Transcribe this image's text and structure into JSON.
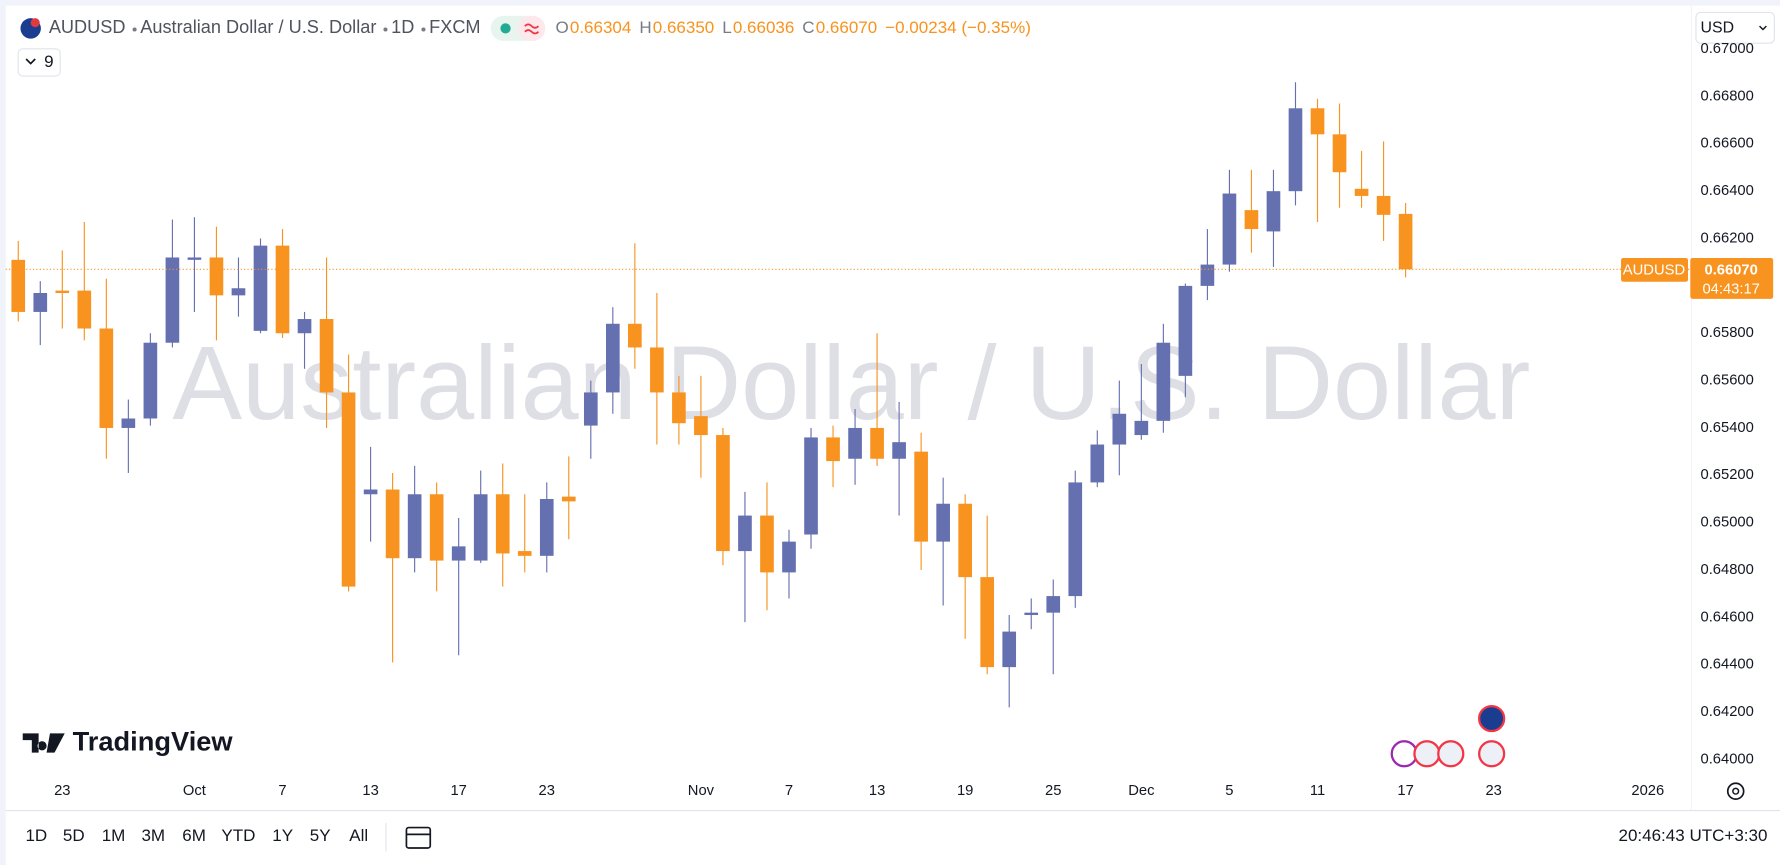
{
  "header": {
    "symbol": "AUDUSD",
    "description": "Australian Dollar / U.S. Dollar",
    "interval": "1D",
    "exchange": "FXCM",
    "ohlc": [
      {
        "label": "O",
        "value": "0.66304"
      },
      {
        "label": "H",
        "value": "0.66350"
      },
      {
        "label": "L",
        "value": "0.66036"
      },
      {
        "label": "C",
        "value": "0.66070"
      }
    ],
    "change": "−0.00234 (−0.35%)",
    "indicators_count": "9",
    "currency": "USD"
  },
  "branding": "TradingView",
  "toolbar": {
    "ranges": [
      "1D",
      "5D",
      "1M",
      "3M",
      "6M",
      "YTD",
      "1Y",
      "5Y",
      "All"
    ],
    "clock": "20:46:43 UTC+3:30"
  },
  "chart_data": {
    "type": "candlestick",
    "up_color": "#6570b0",
    "down_color": "#f7931e",
    "grid": false,
    "candles": {
      "open": [
        0.6611,
        0.6589,
        0.6598,
        0.6598,
        0.6582,
        0.654,
        0.6544,
        0.6576,
        0.6611,
        0.6612,
        0.6596,
        0.6581,
        0.6617,
        0.658,
        0.6586,
        0.6555,
        0.6512,
        0.6514,
        0.6485,
        0.6512,
        0.6484,
        0.6484,
        0.6512,
        0.6488,
        0.6486,
        0.6511,
        0.6541,
        0.6555,
        0.6584,
        0.6574,
        0.6555,
        0.6545,
        0.6537,
        0.6488,
        0.6503,
        0.6479,
        0.6495,
        0.6536,
        0.6527,
        0.654,
        0.6527,
        0.653,
        0.6492,
        0.6508,
        0.6477,
        0.6439,
        0.6461,
        0.6462,
        0.6469,
        0.6517,
        0.6533,
        0.6537,
        0.6543,
        0.6562,
        0.66,
        0.6609,
        0.6632,
        0.6623,
        0.664,
        0.6675,
        0.6664,
        0.6641,
        0.6638,
        0.66304
      ],
      "high": [
        0.6619,
        0.6602,
        0.6615,
        0.6627,
        0.6603,
        0.6552,
        0.658,
        0.6628,
        0.6629,
        0.6625,
        0.6612,
        0.662,
        0.6624,
        0.6589,
        0.6612,
        0.6571,
        0.6532,
        0.6521,
        0.6524,
        0.6517,
        0.6502,
        0.6522,
        0.6525,
        0.6512,
        0.6517,
        0.6528,
        0.656,
        0.6591,
        0.6618,
        0.6597,
        0.6562,
        0.6562,
        0.654,
        0.6513,
        0.6517,
        0.6497,
        0.654,
        0.6541,
        0.6548,
        0.658,
        0.6551,
        0.6538,
        0.6519,
        0.6512,
        0.6503,
        0.6461,
        0.6468,
        0.6476,
        0.6522,
        0.6539,
        0.656,
        0.6567,
        0.6584,
        0.6601,
        0.6624,
        0.6649,
        0.6649,
        0.6649,
        0.6686,
        0.6679,
        0.6677,
        0.6657,
        0.6661,
        0.6635
      ],
      "low": [
        0.6585,
        0.6575,
        0.6582,
        0.6577,
        0.6527,
        0.6521,
        0.6541,
        0.6574,
        0.6589,
        0.6577,
        0.6587,
        0.658,
        0.6578,
        0.6565,
        0.654,
        0.6471,
        0.6492,
        0.6441,
        0.6479,
        0.6471,
        0.6444,
        0.6483,
        0.6473,
        0.6479,
        0.6479,
        0.6493,
        0.6527,
        0.6546,
        0.6565,
        0.6533,
        0.6533,
        0.6519,
        0.6482,
        0.6458,
        0.6463,
        0.6468,
        0.6489,
        0.6515,
        0.6516,
        0.6524,
        0.6503,
        0.648,
        0.6465,
        0.6451,
        0.6436,
        0.6422,
        0.6455,
        0.6436,
        0.6464,
        0.6515,
        0.652,
        0.6535,
        0.6538,
        0.6553,
        0.6594,
        0.6606,
        0.6614,
        0.6608,
        0.6634,
        0.6627,
        0.6633,
        0.6633,
        0.6619,
        0.66036
      ],
      "close": [
        0.6589,
        0.6597,
        0.6597,
        0.6582,
        0.654,
        0.6544,
        0.6576,
        0.6612,
        0.6612,
        0.6596,
        0.6599,
        0.6617,
        0.658,
        0.6586,
        0.6555,
        0.6473,
        0.6514,
        0.6485,
        0.6512,
        0.6484,
        0.649,
        0.6512,
        0.6487,
        0.6486,
        0.651,
        0.6509,
        0.6555,
        0.6584,
        0.6574,
        0.6555,
        0.6542,
        0.6537,
        0.6488,
        0.6503,
        0.6479,
        0.6492,
        0.6536,
        0.6526,
        0.654,
        0.6527,
        0.6534,
        0.6492,
        0.6508,
        0.6477,
        0.6439,
        0.6454,
        0.6462,
        0.6469,
        0.6517,
        0.6533,
        0.6546,
        0.6543,
        0.6576,
        0.66,
        0.6609,
        0.6639,
        0.6624,
        0.664,
        0.6675,
        0.6664,
        0.6648,
        0.6638,
        0.663,
        0.6607
      ]
    },
    "xlim": [
      -0.57,
      75.98
    ],
    "xticks": [
      {
        "value": 2,
        "label": "23"
      },
      {
        "value": 8,
        "label": "Oct"
      },
      {
        "value": 12,
        "label": "7"
      },
      {
        "value": 16,
        "label": "13"
      },
      {
        "value": 20,
        "label": "17"
      },
      {
        "value": 24,
        "label": "23"
      },
      {
        "value": 31,
        "label": "Nov"
      },
      {
        "value": 35,
        "label": "7"
      },
      {
        "value": 39,
        "label": "13"
      },
      {
        "value": 43,
        "label": "19"
      },
      {
        "value": 47,
        "label": "25"
      },
      {
        "value": 51,
        "label": "Dec"
      },
      {
        "value": 55,
        "label": "5"
      },
      {
        "value": 59,
        "label": "11"
      },
      {
        "value": 63,
        "label": "17"
      },
      {
        "value": 67,
        "label": "23"
      },
      {
        "value": 74,
        "label": "2026"
      }
    ],
    "ylim": [
      0.63794,
      0.67169
    ],
    "yticks": [
      {
        "value": 0.64,
        "label": "0.64000"
      },
      {
        "value": 0.642,
        "label": "0.64200"
      },
      {
        "value": 0.644,
        "label": "0.64400"
      },
      {
        "value": 0.646,
        "label": "0.64600"
      },
      {
        "value": 0.648,
        "label": "0.64800"
      },
      {
        "value": 0.65,
        "label": "0.65000"
      },
      {
        "value": 0.652,
        "label": "0.65200"
      },
      {
        "value": 0.654,
        "label": "0.65400"
      },
      {
        "value": 0.656,
        "label": "0.65600"
      },
      {
        "value": 0.658,
        "label": "0.65800"
      },
      {
        "value": 0.66,
        "label": "0.66000"
      },
      {
        "value": 0.662,
        "label": "0.66200"
      },
      {
        "value": 0.664,
        "label": "0.66400"
      },
      {
        "value": 0.666,
        "label": "0.66600"
      },
      {
        "value": 0.668,
        "label": "0.66800"
      },
      {
        "value": 0.67,
        "label": "0.67000"
      }
    ],
    "last_price_label": "0.66070",
    "countdown": "04:43:17"
  }
}
